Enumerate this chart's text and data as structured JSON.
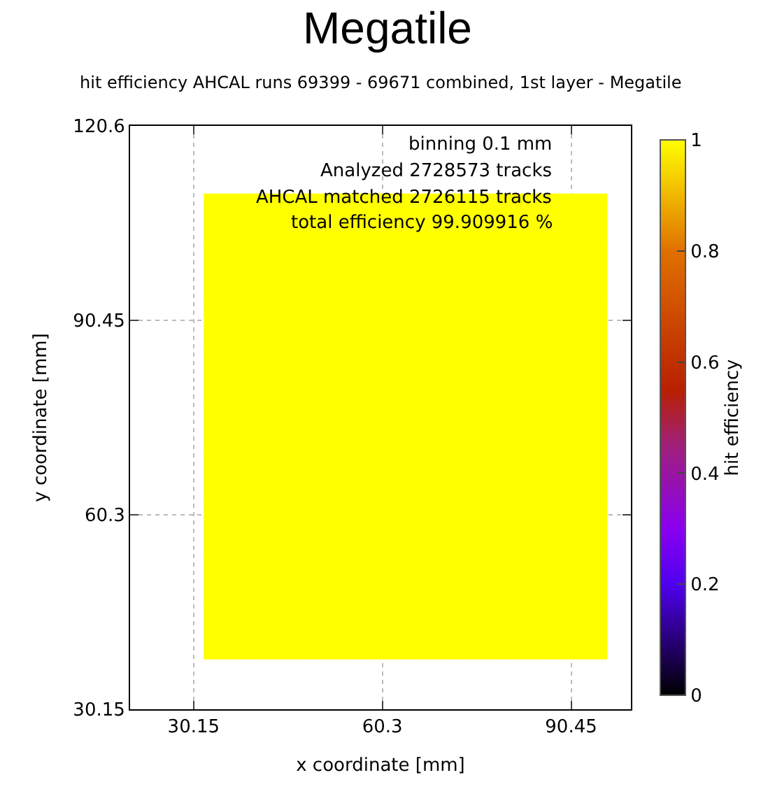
{
  "chart_data": {
    "type": "scatter",
    "title": "Megatile",
    "subtitle": "hit efficiency AHCAL runs 69399 - 69671 combined, 1st layer - Megatile",
    "xlabel": "x coordinate [mm]",
    "ylabel": "y coordinate [mm]",
    "clabel": "hit efficiency",
    "annotations": [
      "binning 0.1 mm",
      "Analyzed 2728573 tracks",
      "AHCAL matched 2726115 tracks",
      "total efficiency 99.909916 %"
    ],
    "marker": "square",
    "x": [
      36,
      44,
      52,
      60,
      68,
      76,
      84,
      92,
      36,
      44,
      52,
      60,
      68,
      76,
      84,
      92,
      36,
      44,
      52,
      60,
      68,
      76,
      84,
      92,
      36,
      44,
      52,
      60,
      68,
      76,
      84,
      92,
      36,
      44,
      52,
      60,
      68,
      76,
      84,
      92,
      36,
      44,
      52,
      60,
      68,
      76,
      84,
      92,
      36,
      44,
      52,
      60,
      68,
      76,
      84,
      92,
      36,
      44,
      52,
      60,
      68,
      76,
      84,
      92,
      36,
      44,
      52,
      60,
      68,
      76,
      84,
      92
    ],
    "values": [
      42,
      42,
      42,
      42,
      42,
      42,
      42,
      42,
      50,
      50,
      50,
      50,
      50,
      50,
      50,
      50,
      58,
      58,
      58,
      58,
      58,
      58,
      58,
      58,
      66,
      66,
      66,
      66,
      66,
      66,
      66,
      66,
      74,
      74,
      74,
      74,
      74,
      74,
      74,
      74,
      82,
      82,
      82,
      82,
      82,
      82,
      82,
      82,
      90,
      90,
      90,
      90,
      90,
      90,
      90,
      90,
      98,
      98,
      98,
      98,
      98,
      98,
      98,
      98,
      106,
      106,
      106,
      106,
      106,
      106,
      106,
      106
    ],
    "cvalues": [
      1,
      1,
      1,
      1,
      1,
      1,
      1,
      1,
      1,
      1,
      1,
      1,
      1,
      1,
      1,
      1,
      1,
      1,
      1,
      1,
      1,
      1,
      1,
      1,
      1,
      1,
      1,
      1,
      1,
      1,
      1,
      1,
      1,
      1,
      1,
      1,
      1,
      1,
      1,
      1,
      1,
      1,
      1,
      1,
      1,
      1,
      1,
      1,
      1,
      1,
      1,
      1,
      1,
      1,
      1,
      1,
      1,
      1,
      1,
      1,
      1,
      1,
      1,
      1,
      1,
      1,
      1,
      1,
      1,
      1,
      1,
      1
    ],
    "xlim": [
      20,
      100
    ],
    "xticks": [
      30.15,
      60.3,
      90.45
    ],
    "ylim": [
      30.15,
      120.6
    ],
    "yticks": [
      30.15,
      60.3,
      90.45,
      120.6
    ],
    "clim": [
      0,
      1
    ],
    "cticks": [
      0,
      0.2,
      0.4,
      0.6,
      0.8,
      1
    ],
    "grid": true
  }
}
